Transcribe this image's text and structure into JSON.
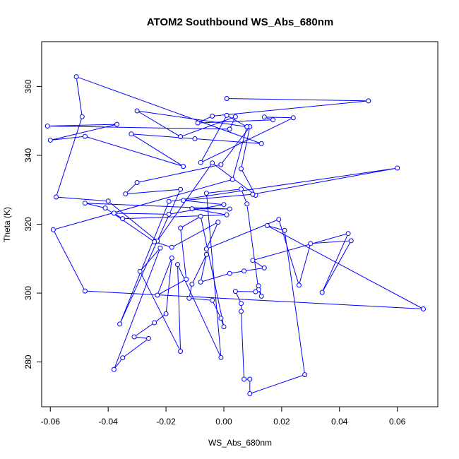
{
  "chart_data": {
    "type": "line",
    "title": "ATOM2 Southbound WS_Abs_680nm",
    "xlabel": "WS_Abs_680nm",
    "ylabel": "Theta (K)",
    "xlim": [
      -0.063,
      0.074
    ],
    "ylim": [
      267,
      373
    ],
    "xticks": [
      -0.06,
      -0.04,
      -0.02,
      0.0,
      0.02,
      0.04,
      0.06
    ],
    "xtick_labels": [
      "-0.06",
      "-0.04",
      "-0.02",
      "0.00",
      "0.02",
      "0.04",
      "0.06"
    ],
    "yticks": [
      280,
      300,
      320,
      340,
      360
    ],
    "ytick_labels": [
      "280",
      "300",
      "320",
      "340",
      "360"
    ],
    "grid": false,
    "line_color": "#0000ff",
    "marker": "open-circle",
    "series": [
      {
        "points": [
          [
            0.001,
            356.5
          ],
          [
            0.05,
            355.8
          ],
          [
            -0.004,
            351.4
          ],
          [
            -0.009,
            349.4
          ],
          [
            0.017,
            350.3
          ],
          [
            0.014,
            351.1
          ],
          [
            0.024,
            350.9
          ],
          [
            -0.008,
            337.9
          ],
          [
            0.001,
            351.6
          ],
          [
            0.008,
            348.3
          ],
          [
            -0.03,
            352.9
          ],
          [
            -0.015,
            345.4
          ],
          [
            0.004,
            351.2
          ],
          [
            0.002,
            347.6
          ],
          [
            -0.061,
            348.5
          ],
          [
            -0.037,
            349.0
          ],
          [
            -0.06,
            344.4
          ],
          [
            -0.048,
            345.5
          ],
          [
            -0.014,
            336.8
          ],
          [
            -0.032,
            346.2
          ],
          [
            -0.01,
            344.8
          ],
          [
            0.013,
            343.4
          ],
          [
            -0.051,
            362.8
          ],
          [
            -0.049,
            351.2
          ],
          [
            -0.058,
            327.9
          ],
          [
            -0.04,
            326.7
          ],
          [
            -0.023,
            315.1
          ],
          [
            -0.004,
            337.8
          ],
          [
            0.011,
            328.4
          ],
          [
            0.006,
            336.1
          ],
          [
            0.009,
            348.3
          ],
          [
            -0.001,
            337.3
          ],
          [
            -0.03,
            332.1
          ],
          [
            -0.034,
            328.8
          ],
          [
            -0.015,
            330.1
          ],
          [
            -0.036,
            291.0
          ],
          [
            -0.019,
            326.6
          ],
          [
            0.06,
            336.3
          ],
          [
            0.01,
            328.7
          ],
          [
            -0.014,
            326.9
          ],
          [
            0.0,
            325.7
          ],
          [
            -0.019,
            322.9
          ],
          [
            -0.038,
            323.2
          ],
          [
            -0.035,
            321.6
          ],
          [
            0.001,
            322.7
          ],
          [
            -0.011,
            324.5
          ],
          [
            0.002,
            324.4
          ],
          [
            -0.048,
            326.1
          ],
          [
            -0.041,
            324.7
          ],
          [
            -0.024,
            314.9
          ],
          [
            -0.018,
            313.3
          ],
          [
            -0.002,
            320.6
          ],
          [
            -0.006,
            312.8
          ],
          [
            0.019,
            321.4
          ],
          [
            0.026,
            302.3
          ],
          [
            0.03,
            314.4
          ],
          [
            0.044,
            315.2
          ],
          [
            0.034,
            300.2
          ],
          [
            0.043,
            317.3
          ],
          [
            0.01,
            309.5
          ],
          [
            0.014,
            307.3
          ],
          [
            0.007,
            306.4
          ],
          [
            0.002,
            305.7
          ],
          [
            -0.008,
            303.2
          ],
          [
            -0.006,
            311.2
          ],
          [
            -0.011,
            302.6
          ],
          [
            -0.012,
            298.5
          ],
          [
            -0.004,
            297.9
          ],
          [
            -0.001,
            292.7
          ],
          [
            0.0,
            290.2
          ],
          [
            -0.008,
            322.3
          ],
          [
            -0.015,
            318.9
          ],
          [
            -0.013,
            304.0
          ],
          [
            -0.023,
            299.4
          ],
          [
            -0.018,
            310.2
          ],
          [
            -0.02,
            294.0
          ],
          [
            -0.024,
            291.4
          ],
          [
            -0.031,
            287.3
          ],
          [
            -0.026,
            286.8
          ],
          [
            -0.035,
            281.2
          ],
          [
            -0.038,
            277.8
          ],
          [
            -0.022,
            313.1
          ],
          [
            -0.029,
            306.3
          ],
          [
            -0.015,
            283.1
          ],
          [
            -0.016,
            308.3
          ],
          [
            -0.001,
            281.3
          ],
          [
            -0.006,
            329.0
          ],
          [
            0.006,
            330.2
          ],
          [
            0.008,
            325.9
          ],
          [
            0.012,
            301.0
          ],
          [
            0.013,
            299.1
          ],
          [
            0.012,
            302.1
          ],
          [
            0.011,
            300.4
          ],
          [
            0.004,
            300.5
          ],
          [
            0.006,
            297.0
          ],
          [
            0.006,
            294.7
          ],
          [
            0.007,
            275.0
          ],
          [
            0.009,
            275.0
          ],
          [
            0.009,
            270.8
          ],
          [
            0.028,
            276.3
          ],
          [
            0.021,
            318.2
          ],
          [
            0.015,
            319.6
          ],
          [
            0.069,
            295.4
          ],
          [
            -0.048,
            300.6
          ],
          [
            -0.059,
            318.4
          ],
          [
            0.003,
            333.0
          ],
          [
            0.008,
            348.3
          ]
        ]
      }
    ]
  }
}
